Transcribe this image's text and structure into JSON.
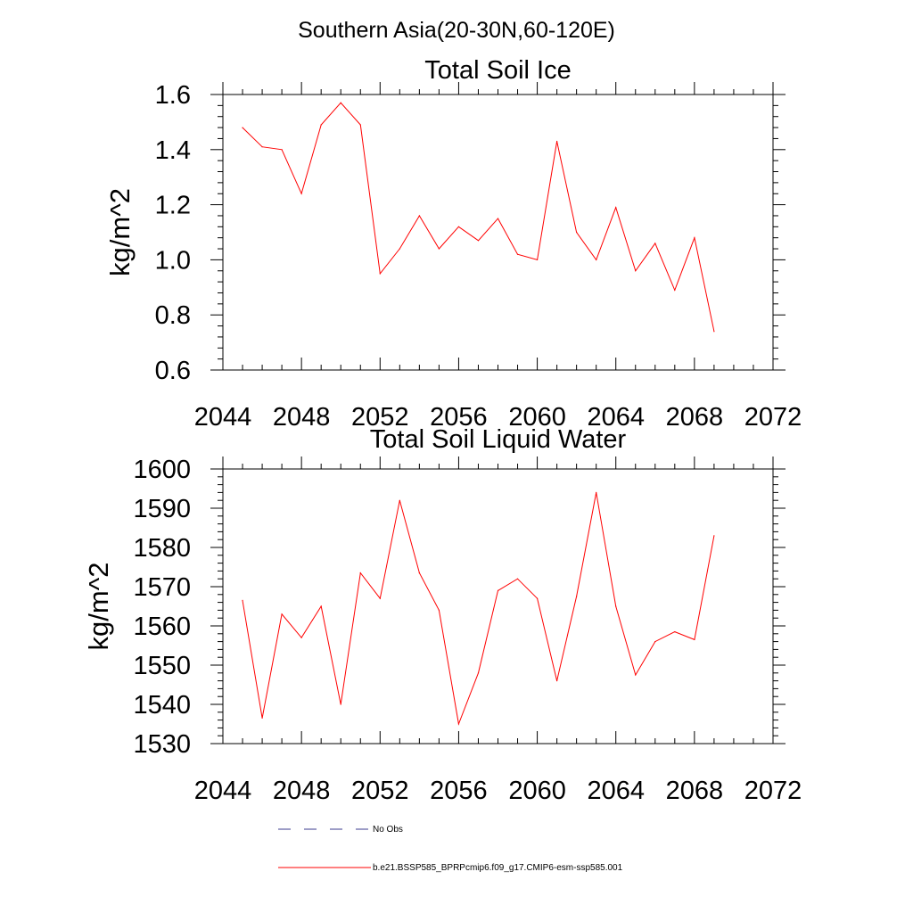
{
  "suptitle": "Southern Asia(20-30N,60-120E)",
  "chart_data": [
    {
      "type": "line",
      "title": "Total Soil Ice",
      "xlabel": "",
      "ylabel": "kg/m^2",
      "xlim": [
        2044,
        2072
      ],
      "ylim": [
        0.6,
        1.6
      ],
      "xticks": [
        "2044",
        "2048",
        "2052",
        "2056",
        "2060",
        "2064",
        "2068",
        "2072"
      ],
      "yticks": [
        "0.6",
        "0.8",
        "1.0",
        "1.2",
        "1.4",
        "1.6"
      ],
      "grid": false,
      "series": [
        {
          "name": "b.e21.BSSP585_BPRPcmip6.f09_g17.CMIP6-esm-ssp585.001",
          "color": "#ff0000",
          "x": [
            2045,
            2046,
            2047,
            2048,
            2049,
            2050,
            2051,
            2052,
            2053,
            2054,
            2055,
            2056,
            2057,
            2058,
            2059,
            2060,
            2061,
            2062,
            2063,
            2064,
            2065,
            2066,
            2067,
            2068,
            2069
          ],
          "values": [
            1.48,
            1.41,
            1.4,
            1.24,
            1.49,
            1.57,
            1.49,
            0.95,
            1.04,
            1.16,
            1.04,
            1.12,
            1.07,
            1.15,
            1.02,
            1.0,
            1.43,
            1.1,
            1.0,
            1.19,
            0.96,
            1.06,
            0.89,
            1.08,
            0.74
          ]
        }
      ]
    },
    {
      "type": "line",
      "title": "Total Soil Liquid Water",
      "xlabel": "",
      "ylabel": "kg/m^2",
      "xlim": [
        2044,
        2072
      ],
      "ylim": [
        1530,
        1600
      ],
      "xticks": [
        "2044",
        "2048",
        "2052",
        "2056",
        "2060",
        "2064",
        "2068",
        "2072"
      ],
      "yticks": [
        "1530",
        "1540",
        "1550",
        "1560",
        "1570",
        "1580",
        "1590",
        "1600"
      ],
      "grid": false,
      "series": [
        {
          "name": "b.e21.BSSP585_BPRPcmip6.f09_g17.CMIP6-esm-ssp585.001",
          "color": "#ff0000",
          "x": [
            2045,
            2046,
            2047,
            2048,
            2049,
            2050,
            2051,
            2052,
            2053,
            2054,
            2055,
            2056,
            2057,
            2058,
            2059,
            2060,
            2061,
            2062,
            2063,
            2064,
            2065,
            2066,
            2067,
            2068,
            2069
          ],
          "values": [
            1566.5,
            1536.5,
            1563,
            1557,
            1565,
            1540,
            1573.5,
            1567,
            1592,
            1573.5,
            1564,
            1535,
            1548,
            1569,
            1572,
            1567,
            1546,
            1567.5,
            1594,
            1565,
            1547.5,
            1556,
            1558.5,
            1556.5,
            1583
          ]
        }
      ]
    }
  ],
  "legend": {
    "placement": "bottom",
    "entries": [
      {
        "label": "No Obs",
        "color": "#3b3b8f",
        "style": "dashed"
      },
      {
        "label": "b.e21.BSSP585_BPRPcmip6.f09_g17.CMIP6-esm-ssp585.001",
        "color": "#ff0000",
        "style": "solid"
      }
    ]
  }
}
